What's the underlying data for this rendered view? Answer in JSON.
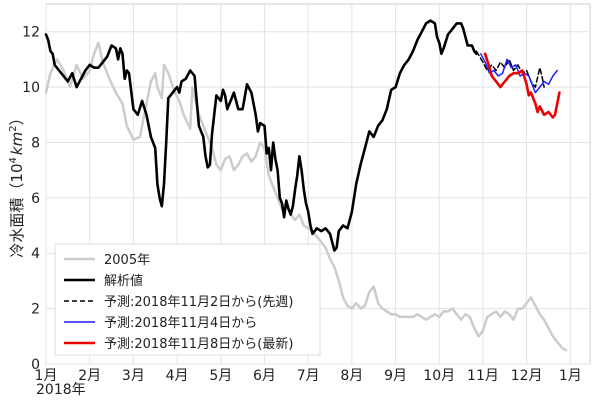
{
  "chart_data": {
    "type": "line",
    "title": "",
    "xlabel": "",
    "ylabel_prefix": "冷水面積（",
    "ylabel_base": "10",
    "ylabel_exp": "4",
    "ylabel_unit": "km",
    "ylabel_unit_exp": "2",
    "ylabel_suffix": "）",
    "year_label": "2018年",
    "xlim": [
      1,
      13.45
    ],
    "ylim": [
      0,
      13
    ],
    "y_ticks": [
      0,
      2,
      4,
      6,
      8,
      10,
      12
    ],
    "x_ticks": [
      {
        "x": 1,
        "label": "1月"
      },
      {
        "x": 2,
        "label": "2月"
      },
      {
        "x": 3,
        "label": "3月"
      },
      {
        "x": 4,
        "label": "4月"
      },
      {
        "x": 5,
        "label": "5月"
      },
      {
        "x": 6,
        "label": "6月"
      },
      {
        "x": 7,
        "label": "7月"
      },
      {
        "x": 8,
        "label": "8月"
      },
      {
        "x": 9,
        "label": "9月"
      },
      {
        "x": 10,
        "label": "10月"
      },
      {
        "x": 11,
        "label": "11月"
      },
      {
        "x": 12,
        "label": "12月"
      },
      {
        "x": 13,
        "label": "1月"
      }
    ],
    "grid": true,
    "legend_position": "lower-left",
    "series": [
      {
        "name": "2005年",
        "color": "#cccccc",
        "width": 2.5,
        "dash": "",
        "points": [
          [
            1.0,
            9.8
          ],
          [
            1.1,
            10.5
          ],
          [
            1.25,
            11.0
          ],
          [
            1.4,
            10.6
          ],
          [
            1.55,
            10.0
          ],
          [
            1.7,
            10.8
          ],
          [
            1.85,
            10.3
          ],
          [
            2.0,
            10.6
          ],
          [
            2.1,
            11.2
          ],
          [
            2.2,
            11.6
          ],
          [
            2.3,
            10.9
          ],
          [
            2.45,
            10.3
          ],
          [
            2.6,
            9.8
          ],
          [
            2.75,
            9.4
          ],
          [
            2.85,
            8.6
          ],
          [
            3.0,
            8.1
          ],
          [
            3.15,
            8.2
          ],
          [
            3.3,
            9.4
          ],
          [
            3.4,
            10.2
          ],
          [
            3.5,
            10.5
          ],
          [
            3.55,
            10.0
          ],
          [
            3.65,
            9.6
          ],
          [
            3.7,
            10.8
          ],
          [
            3.8,
            10.5
          ],
          [
            3.95,
            9.8
          ],
          [
            4.05,
            9.5
          ],
          [
            4.15,
            9.0
          ],
          [
            4.3,
            8.5
          ],
          [
            4.35,
            10.0
          ],
          [
            4.5,
            9.0
          ],
          [
            4.6,
            8.6
          ],
          [
            4.7,
            8.2
          ],
          [
            4.8,
            7.8
          ],
          [
            4.9,
            7.2
          ],
          [
            5.0,
            7.0
          ],
          [
            5.1,
            7.4
          ],
          [
            5.2,
            7.5
          ],
          [
            5.3,
            7.0
          ],
          [
            5.4,
            7.2
          ],
          [
            5.5,
            7.5
          ],
          [
            5.6,
            7.6
          ],
          [
            5.7,
            7.3
          ],
          [
            5.8,
            7.5
          ],
          [
            5.9,
            8.0
          ],
          [
            6.0,
            7.8
          ],
          [
            6.1,
            6.8
          ],
          [
            6.2,
            6.4
          ],
          [
            6.3,
            6.0
          ],
          [
            6.4,
            5.6
          ],
          [
            6.5,
            5.8
          ],
          [
            6.6,
            5.4
          ],
          [
            6.7,
            5.2
          ],
          [
            6.8,
            5.4
          ],
          [
            6.9,
            5.0
          ],
          [
            7.0,
            4.9
          ],
          [
            7.1,
            4.8
          ],
          [
            7.2,
            4.6
          ],
          [
            7.3,
            4.4
          ],
          [
            7.4,
            4.2
          ],
          [
            7.5,
            3.8
          ],
          [
            7.6,
            3.5
          ],
          [
            7.7,
            3.0
          ],
          [
            7.8,
            2.4
          ],
          [
            7.9,
            2.1
          ],
          [
            8.0,
            2.0
          ],
          [
            8.1,
            2.2
          ],
          [
            8.2,
            2.0
          ],
          [
            8.3,
            2.1
          ],
          [
            8.4,
            2.6
          ],
          [
            8.5,
            2.8
          ],
          [
            8.6,
            2.2
          ],
          [
            8.7,
            2.0
          ],
          [
            8.8,
            1.9
          ],
          [
            8.9,
            1.8
          ],
          [
            9.0,
            1.8
          ],
          [
            9.1,
            1.7
          ],
          [
            9.2,
            1.7
          ],
          [
            9.3,
            1.7
          ],
          [
            9.4,
            1.7
          ],
          [
            9.5,
            1.8
          ],
          [
            9.6,
            1.7
          ],
          [
            9.7,
            1.6
          ],
          [
            9.8,
            1.7
          ],
          [
            9.9,
            1.8
          ],
          [
            10.0,
            1.7
          ],
          [
            10.1,
            1.9
          ],
          [
            10.2,
            1.9
          ],
          [
            10.3,
            2.0
          ],
          [
            10.4,
            1.8
          ],
          [
            10.5,
            1.6
          ],
          [
            10.6,
            1.8
          ],
          [
            10.7,
            1.7
          ],
          [
            10.8,
            1.3
          ],
          [
            10.9,
            1.0
          ],
          [
            11.0,
            1.2
          ],
          [
            11.1,
            1.7
          ],
          [
            11.2,
            1.8
          ],
          [
            11.3,
            1.9
          ],
          [
            11.4,
            1.7
          ],
          [
            11.5,
            1.9
          ],
          [
            11.6,
            1.8
          ],
          [
            11.7,
            1.6
          ],
          [
            11.8,
            2.0
          ],
          [
            11.9,
            2.0
          ],
          [
            12.0,
            2.2
          ],
          [
            12.1,
            2.4
          ],
          [
            12.2,
            2.1
          ],
          [
            12.3,
            1.8
          ],
          [
            12.4,
            1.6
          ],
          [
            12.5,
            1.3
          ],
          [
            12.6,
            1.0
          ],
          [
            12.7,
            0.8
          ],
          [
            12.8,
            0.6
          ],
          [
            12.9,
            0.5
          ]
        ]
      },
      {
        "name": "解析値",
        "color": "#000000",
        "width": 2.6,
        "dash": "",
        "points": [
          [
            1.0,
            11.9
          ],
          [
            1.05,
            11.7
          ],
          [
            1.1,
            11.3
          ],
          [
            1.15,
            11.2
          ],
          [
            1.2,
            10.8
          ],
          [
            1.3,
            10.6
          ],
          [
            1.4,
            10.4
          ],
          [
            1.5,
            10.2
          ],
          [
            1.6,
            10.5
          ],
          [
            1.7,
            10.0
          ],
          [
            1.8,
            10.3
          ],
          [
            1.9,
            10.6
          ],
          [
            2.0,
            10.8
          ],
          [
            2.1,
            10.7
          ],
          [
            2.2,
            10.7
          ],
          [
            2.3,
            10.9
          ],
          [
            2.4,
            11.1
          ],
          [
            2.5,
            11.5
          ],
          [
            2.6,
            11.4
          ],
          [
            2.65,
            11.0
          ],
          [
            2.7,
            11.4
          ],
          [
            2.75,
            11.2
          ],
          [
            2.8,
            10.3
          ],
          [
            2.85,
            10.6
          ],
          [
            2.9,
            10.5
          ],
          [
            3.0,
            9.2
          ],
          [
            3.1,
            9.0
          ],
          [
            3.2,
            9.5
          ],
          [
            3.3,
            9.0
          ],
          [
            3.4,
            8.2
          ],
          [
            3.5,
            7.8
          ],
          [
            3.55,
            6.5
          ],
          [
            3.6,
            6.0
          ],
          [
            3.65,
            5.7
          ],
          [
            3.7,
            6.5
          ],
          [
            3.75,
            8.0
          ],
          [
            3.8,
            9.6
          ],
          [
            3.9,
            9.8
          ],
          [
            4.0,
            10.0
          ],
          [
            4.05,
            9.8
          ],
          [
            4.1,
            10.2
          ],
          [
            4.2,
            10.3
          ],
          [
            4.3,
            10.6
          ],
          [
            4.4,
            10.4
          ],
          [
            4.45,
            9.5
          ],
          [
            4.5,
            8.6
          ],
          [
            4.6,
            8.2
          ],
          [
            4.65,
            7.5
          ],
          [
            4.7,
            7.1
          ],
          [
            4.75,
            7.2
          ],
          [
            4.8,
            8.3
          ],
          [
            4.9,
            9.7
          ],
          [
            5.0,
            9.5
          ],
          [
            5.05,
            9.9
          ],
          [
            5.1,
            9.7
          ],
          [
            5.15,
            9.2
          ],
          [
            5.2,
            9.4
          ],
          [
            5.3,
            9.8
          ],
          [
            5.4,
            9.2
          ],
          [
            5.5,
            9.2
          ],
          [
            5.6,
            10.1
          ],
          [
            5.7,
            9.8
          ],
          [
            5.8,
            9.0
          ],
          [
            5.85,
            8.4
          ],
          [
            5.9,
            8.7
          ],
          [
            6.0,
            8.6
          ],
          [
            6.05,
            7.6
          ],
          [
            6.1,
            7.8
          ],
          [
            6.15,
            7.0
          ],
          [
            6.2,
            8.0
          ],
          [
            6.25,
            7.4
          ],
          [
            6.3,
            7.0
          ],
          [
            6.35,
            6.0
          ],
          [
            6.4,
            5.8
          ],
          [
            6.45,
            5.3
          ],
          [
            6.5,
            5.9
          ],
          [
            6.55,
            5.6
          ],
          [
            6.6,
            5.4
          ],
          [
            6.65,
            5.7
          ],
          [
            6.7,
            6.3
          ],
          [
            6.75,
            6.8
          ],
          [
            6.8,
            7.5
          ],
          [
            6.85,
            7.0
          ],
          [
            6.9,
            6.3
          ],
          [
            6.95,
            5.8
          ],
          [
            7.0,
            5.5
          ],
          [
            7.05,
            5.0
          ],
          [
            7.1,
            4.7
          ],
          [
            7.2,
            4.9
          ],
          [
            7.3,
            4.8
          ],
          [
            7.4,
            4.9
          ],
          [
            7.5,
            4.7
          ],
          [
            7.55,
            4.4
          ],
          [
            7.6,
            4.1
          ],
          [
            7.65,
            4.2
          ],
          [
            7.7,
            4.8
          ],
          [
            7.8,
            5.0
          ],
          [
            7.9,
            4.9
          ],
          [
            8.0,
            5.5
          ],
          [
            8.1,
            6.5
          ],
          [
            8.2,
            7.2
          ],
          [
            8.3,
            7.8
          ],
          [
            8.4,
            8.4
          ],
          [
            8.5,
            8.2
          ],
          [
            8.6,
            8.6
          ],
          [
            8.7,
            8.8
          ],
          [
            8.8,
            9.2
          ],
          [
            8.9,
            9.9
          ],
          [
            9.0,
            10.0
          ],
          [
            9.1,
            10.5
          ],
          [
            9.2,
            10.8
          ],
          [
            9.3,
            11.0
          ],
          [
            9.4,
            11.3
          ],
          [
            9.5,
            11.7
          ],
          [
            9.6,
            12.0
          ],
          [
            9.7,
            12.3
          ],
          [
            9.8,
            12.4
          ],
          [
            9.9,
            12.3
          ],
          [
            9.95,
            11.8
          ],
          [
            10.0,
            11.6
          ],
          [
            10.05,
            11.2
          ],
          [
            10.1,
            11.4
          ],
          [
            10.2,
            11.9
          ],
          [
            10.3,
            12.1
          ],
          [
            10.4,
            12.3
          ],
          [
            10.5,
            12.3
          ],
          [
            10.55,
            12.1
          ],
          [
            10.6,
            11.8
          ],
          [
            10.65,
            11.5
          ],
          [
            10.7,
            11.5
          ],
          [
            10.75,
            11.5
          ],
          [
            10.8,
            11.3
          ],
          [
            10.85,
            11.2
          ]
        ]
      },
      {
        "name": "予測:2018年11月2日から(先週)",
        "color": "#000000",
        "width": 1.5,
        "dash": "5,3",
        "points": [
          [
            10.85,
            11.3
          ],
          [
            11.0,
            10.9
          ],
          [
            11.1,
            10.6
          ],
          [
            11.2,
            10.8
          ],
          [
            11.3,
            10.6
          ],
          [
            11.4,
            10.9
          ],
          [
            11.5,
            10.7
          ],
          [
            11.6,
            11.0
          ],
          [
            11.7,
            10.6
          ],
          [
            11.8,
            10.8
          ],
          [
            11.9,
            10.5
          ],
          [
            12.0,
            10.6
          ],
          [
            12.1,
            10.2
          ],
          [
            12.2,
            10.0
          ],
          [
            12.3,
            10.7
          ],
          [
            12.35,
            10.4
          ],
          [
            12.4,
            10.0
          ]
        ]
      },
      {
        "name": "予測:2018年11月4日から",
        "color": "#1f1fff",
        "width": 1.5,
        "dash": "",
        "points": [
          [
            10.95,
            11.2
          ],
          [
            11.05,
            10.9
          ],
          [
            11.15,
            10.5
          ],
          [
            11.25,
            10.6
          ],
          [
            11.35,
            10.4
          ],
          [
            11.45,
            10.5
          ],
          [
            11.55,
            11.0
          ],
          [
            11.65,
            10.7
          ],
          [
            11.75,
            10.8
          ],
          [
            11.85,
            10.4
          ],
          [
            11.95,
            10.5
          ],
          [
            12.05,
            10.4
          ],
          [
            12.15,
            10.0
          ],
          [
            12.2,
            9.8
          ],
          [
            12.3,
            10.0
          ],
          [
            12.4,
            10.2
          ],
          [
            12.5,
            10.1
          ],
          [
            12.6,
            10.4
          ],
          [
            12.7,
            10.6
          ]
        ]
      },
      {
        "name": "予測:2018年11月8日から(最新)",
        "color": "#ee0000",
        "width": 2.6,
        "dash": "",
        "points": [
          [
            11.05,
            11.2
          ],
          [
            11.15,
            10.7
          ],
          [
            11.2,
            10.4
          ],
          [
            11.3,
            10.2
          ],
          [
            11.4,
            10.0
          ],
          [
            11.5,
            10.2
          ],
          [
            11.6,
            10.4
          ],
          [
            11.7,
            10.5
          ],
          [
            11.8,
            10.5
          ],
          [
            11.9,
            10.6
          ],
          [
            12.0,
            10.1
          ],
          [
            12.05,
            9.7
          ],
          [
            12.1,
            9.8
          ],
          [
            12.2,
            9.4
          ],
          [
            12.25,
            9.1
          ],
          [
            12.3,
            9.3
          ],
          [
            12.4,
            9.0
          ],
          [
            12.5,
            9.1
          ],
          [
            12.6,
            8.9
          ],
          [
            12.65,
            9.0
          ],
          [
            12.7,
            9.4
          ],
          [
            12.75,
            9.8
          ]
        ]
      }
    ]
  }
}
